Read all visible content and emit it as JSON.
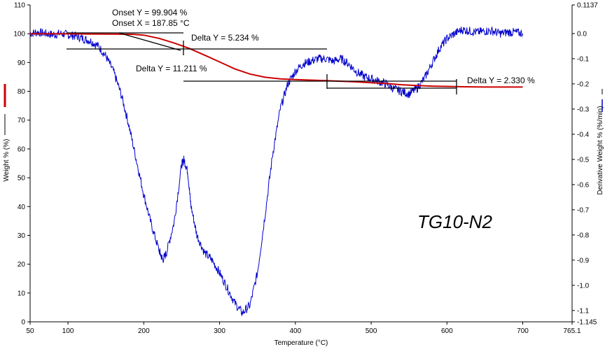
{
  "chart_data": {
    "type": "line",
    "sample_label": "TG10-N2",
    "xlabel": "Temperature (°C)",
    "ylabel_left": "Weight % (%)",
    "ylabel_right": "Derivative Weight % (%/min)",
    "xlim": [
      50,
      765.1
    ],
    "ylim_left": [
      0,
      110
    ],
    "ylim_right": [
      -1.145,
      0.1137
    ],
    "x_ticks": [
      "50",
      "100",
      "200",
      "300",
      "400",
      "500",
      "600",
      "700",
      "765.1"
    ],
    "x_tick_values": [
      50,
      100,
      200,
      300,
      400,
      500,
      600,
      700,
      765.1
    ],
    "y_left_ticks": [
      0,
      10,
      20,
      30,
      40,
      50,
      60,
      70,
      80,
      90,
      100,
      110
    ],
    "y_right_ticks": [
      "0.1137",
      "0.0",
      "-0.1",
      "-0.2",
      "-0.3",
      "-0.4",
      "-0.5",
      "-0.6",
      "-0.7",
      "-0.8",
      "-0.9",
      "-1.0",
      "-1.1",
      "-1.145"
    ],
    "y_right_tick_values": [
      0.1137,
      0.0,
      -0.1,
      -0.2,
      -0.3,
      -0.4,
      -0.5,
      -0.6,
      -0.7,
      -0.8,
      -0.9,
      -1.0,
      -1.1,
      -1.145
    ],
    "series": [
      {
        "axis": "left",
        "color": "#cc0000",
        "x": [
          50,
          80,
          100,
          130,
          160,
          185,
          200,
          220,
          240,
          260,
          280,
          300,
          320,
          340,
          360,
          380,
          400,
          420,
          440,
          460,
          480,
          500,
          520,
          540,
          560,
          580,
          600,
          620,
          650,
          700
        ],
        "y": [
          100.0,
          100.0,
          99.95,
          99.9,
          99.85,
          99.8,
          99.5,
          98.4,
          96.8,
          94.9,
          92.6,
          90.2,
          87.8,
          86.0,
          84.9,
          84.3,
          84.1,
          83.9,
          83.7,
          83.5,
          83.3,
          83.0,
          82.7,
          82.3,
          82.0,
          81.8,
          81.7,
          81.6,
          81.5,
          81.5
        ]
      },
      {
        "axis": "right",
        "color": "#0000cc",
        "x": [
          50,
          60,
          70,
          80,
          90,
          100,
          110,
          120,
          130,
          140,
          150,
          160,
          170,
          180,
          190,
          200,
          210,
          220,
          225,
          230,
          240,
          250,
          253,
          258,
          262,
          270,
          280,
          290,
          300,
          310,
          320,
          330,
          340,
          350,
          360,
          370,
          380,
          390,
          400,
          410,
          420,
          430,
          440,
          450,
          460,
          470,
          480,
          490,
          500,
          510,
          520,
          530,
          540,
          550,
          560,
          570,
          580,
          590,
          600,
          610,
          620,
          630,
          640,
          650,
          660,
          670,
          680,
          690,
          700
        ],
        "y": [
          0.0,
          0.005,
          0.0,
          -0.005,
          0.0,
          -0.005,
          -0.01,
          -0.02,
          -0.03,
          -0.05,
          -0.09,
          -0.15,
          -0.24,
          -0.36,
          -0.5,
          -0.64,
          -0.76,
          -0.86,
          -0.9,
          -0.87,
          -0.75,
          -0.52,
          -0.5,
          -0.55,
          -0.68,
          -0.8,
          -0.87,
          -0.9,
          -0.95,
          -1.01,
          -1.07,
          -1.11,
          -1.08,
          -0.95,
          -0.72,
          -0.48,
          -0.3,
          -0.2,
          -0.15,
          -0.12,
          -0.11,
          -0.1,
          -0.1,
          -0.11,
          -0.1,
          -0.12,
          -0.15,
          -0.17,
          -0.18,
          -0.19,
          -0.2,
          -0.22,
          -0.23,
          -0.24,
          -0.22,
          -0.18,
          -0.12,
          -0.06,
          -0.02,
          0.0,
          0.015,
          0.01,
          0.005,
          0.01,
          0.01,
          0.0,
          0.005,
          0.005,
          0.0
        ]
      }
    ],
    "annotations": {
      "onset_y": "Onset Y = 99.904 %",
      "onset_x": "Onset X = 187.85 °C",
      "delta_1": "Delta Y = 5.234 %",
      "delta_2": "Delta Y = 11.211 %",
      "delta_3": "Delta Y = 2.330 %"
    },
    "grid": false
  }
}
